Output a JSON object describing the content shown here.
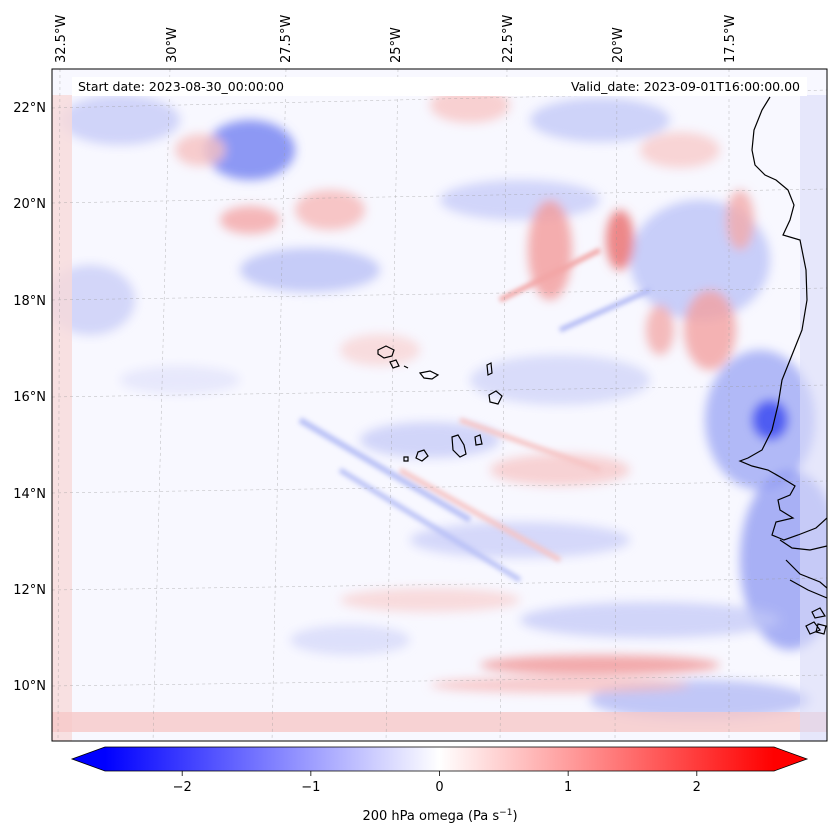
{
  "map": {
    "annotation_start": "Start date: 2023-08-30_00:00:00",
    "annotation_valid": "Valid_date: 2023-09-01T16:00:00.00",
    "lon_labels": [
      "32.5°W",
      "30°W",
      "27.5°W",
      "25°W",
      "22.5°W",
      "20°W",
      "17.5°W"
    ],
    "lat_labels": [
      "22°N",
      "20°N",
      "18°N",
      "16°N",
      "14°N",
      "12°N",
      "10°N"
    ],
    "field_colormap": "bwr",
    "coastline_color": "#000000",
    "gridline_style": "dashed"
  },
  "colorbar": {
    "label": "200 hPa omega (Pa s",
    "label_sup": "−1",
    "label_tail": ")",
    "ticks": [
      "−2",
      "−1",
      "0",
      "1",
      "2"
    ],
    "tick_values": [
      -2,
      -1,
      0,
      1,
      2
    ],
    "range": [
      -2.6,
      2.6
    ],
    "extend": "both",
    "colors": {
      "low": "#0000ff",
      "mid": "#ffffff",
      "high": "#ff0000"
    }
  }
}
